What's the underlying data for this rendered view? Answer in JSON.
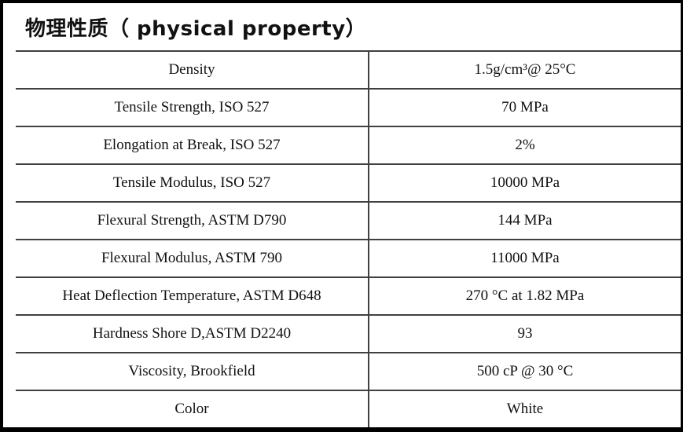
{
  "title": "物理性质（ physical property）",
  "colors": {
    "frame_border": "#000000",
    "table_rule": "#404040",
    "text": "#111111",
    "background": "#ffffff"
  },
  "table": {
    "columns": [
      "property",
      "value"
    ],
    "rows": [
      {
        "property": "Density",
        "value": "1.5g/cm³@ 25°C"
      },
      {
        "property": "Tensile Strength, ISO 527",
        "value": "70 MPa"
      },
      {
        "property": "Elongation at Break, ISO 527",
        "value": "2%"
      },
      {
        "property": "Tensile Modulus, ISO 527",
        "value": "10000 MPa"
      },
      {
        "property": "Flexural Strength, ASTM D790",
        "value": "144 MPa"
      },
      {
        "property": "Flexural Modulus, ASTM 790",
        "value": "11000 MPa"
      },
      {
        "property": "Heat Deflection Temperature, ASTM D648",
        "value": "270 °C at 1.82 MPa"
      },
      {
        "property": "Hardness Shore D,ASTM D2240",
        "value": "93"
      },
      {
        "property": "Viscosity, Brookfield",
        "value": "500 cP @ 30 °C"
      },
      {
        "property": "Color",
        "value": "White"
      }
    ]
  }
}
